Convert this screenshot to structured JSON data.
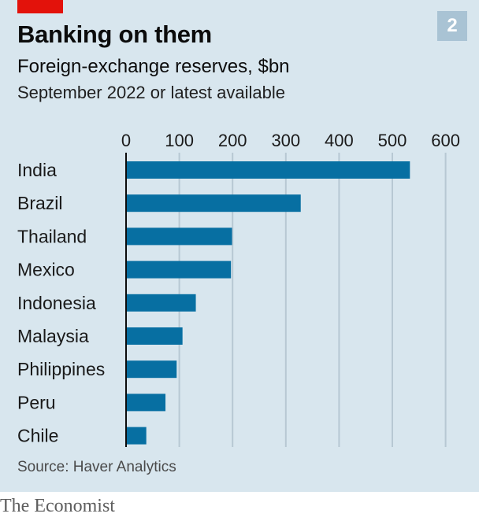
{
  "header": {
    "title": "Banking on them",
    "subtitle": "Foreign-exchange reserves, $bn",
    "note": "September 2022 or latest available",
    "badge": "2"
  },
  "colors": {
    "background": "#d8e6ee",
    "bar": "#076fa2",
    "accent": "#e3120b",
    "gridline": "#b7c8d3",
    "badge": "#a9c3d4"
  },
  "chart_data": {
    "type": "bar",
    "orientation": "horizontal",
    "categories": [
      "India",
      "Brazil",
      "Thailand",
      "Mexico",
      "Indonesia",
      "Malaysia",
      "Philippines",
      "Peru",
      "Chile"
    ],
    "values": [
      533,
      328,
      199,
      197,
      131,
      106,
      95,
      74,
      38
    ],
    "xlim": [
      0,
      600
    ],
    "xticks": [
      "0",
      "100",
      "200",
      "300",
      "400",
      "500",
      "600"
    ],
    "xlabel": "",
    "ylabel": "",
    "grid": true,
    "tick_position": "top"
  },
  "footer": {
    "source": "Source: Haver Analytics",
    "brand": "The Economist"
  }
}
